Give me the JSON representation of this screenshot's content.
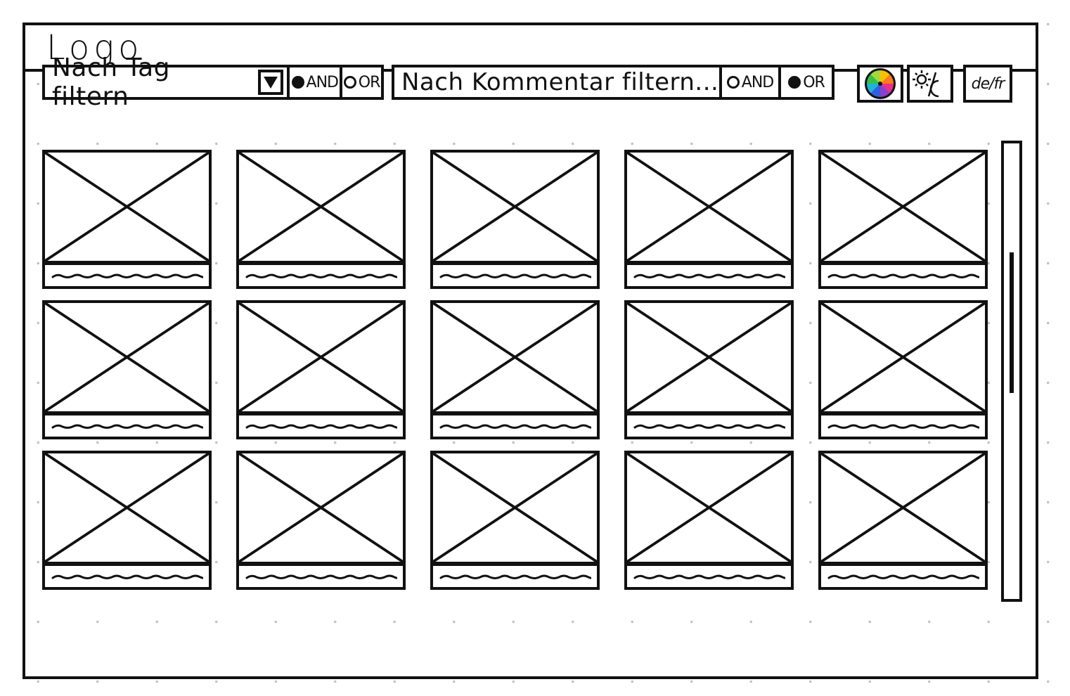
{
  "app": {
    "logo_text": "Logo"
  },
  "toolbar": {
    "tag_filter": {
      "label": "Nach Tag filtern",
      "and_label": "AND",
      "or_label": "OR",
      "selected": "AND"
    },
    "comment_filter": {
      "label": "Nach Kommentar filtern...",
      "and_label": "AND",
      "or_label": "OR",
      "selected": "OR"
    },
    "color_button_icon": "color-wheel-icon",
    "theme_button_icon": "sun-moon-icon",
    "language_label": "de/fr"
  },
  "gallery": {
    "columns": 5,
    "rows": 3,
    "items": [
      {
        "image": "placeholder-image-icon",
        "caption": "squiggle-placeholder"
      },
      {
        "image": "placeholder-image-icon",
        "caption": "squiggle-placeholder"
      },
      {
        "image": "placeholder-image-icon",
        "caption": "squiggle-placeholder"
      },
      {
        "image": "placeholder-image-icon",
        "caption": "squiggle-placeholder"
      },
      {
        "image": "placeholder-image-icon",
        "caption": "squiggle-placeholder"
      },
      {
        "image": "placeholder-image-icon",
        "caption": "squiggle-placeholder"
      },
      {
        "image": "placeholder-image-icon",
        "caption": "squiggle-placeholder"
      },
      {
        "image": "placeholder-image-icon",
        "caption": "squiggle-placeholder"
      },
      {
        "image": "placeholder-image-icon",
        "caption": "squiggle-placeholder"
      },
      {
        "image": "placeholder-image-icon",
        "caption": "squiggle-placeholder"
      },
      {
        "image": "placeholder-image-icon",
        "caption": "squiggle-placeholder"
      },
      {
        "image": "placeholder-image-icon",
        "caption": "squiggle-placeholder"
      },
      {
        "image": "placeholder-image-icon",
        "caption": "squiggle-placeholder"
      },
      {
        "image": "placeholder-image-icon",
        "caption": "squiggle-placeholder"
      },
      {
        "image": "placeholder-image-icon",
        "caption": "squiggle-placeholder"
      }
    ]
  },
  "colors": {
    "ink": "#111111",
    "background": "#ffffff",
    "dot_grid": "#b8c2d6"
  }
}
